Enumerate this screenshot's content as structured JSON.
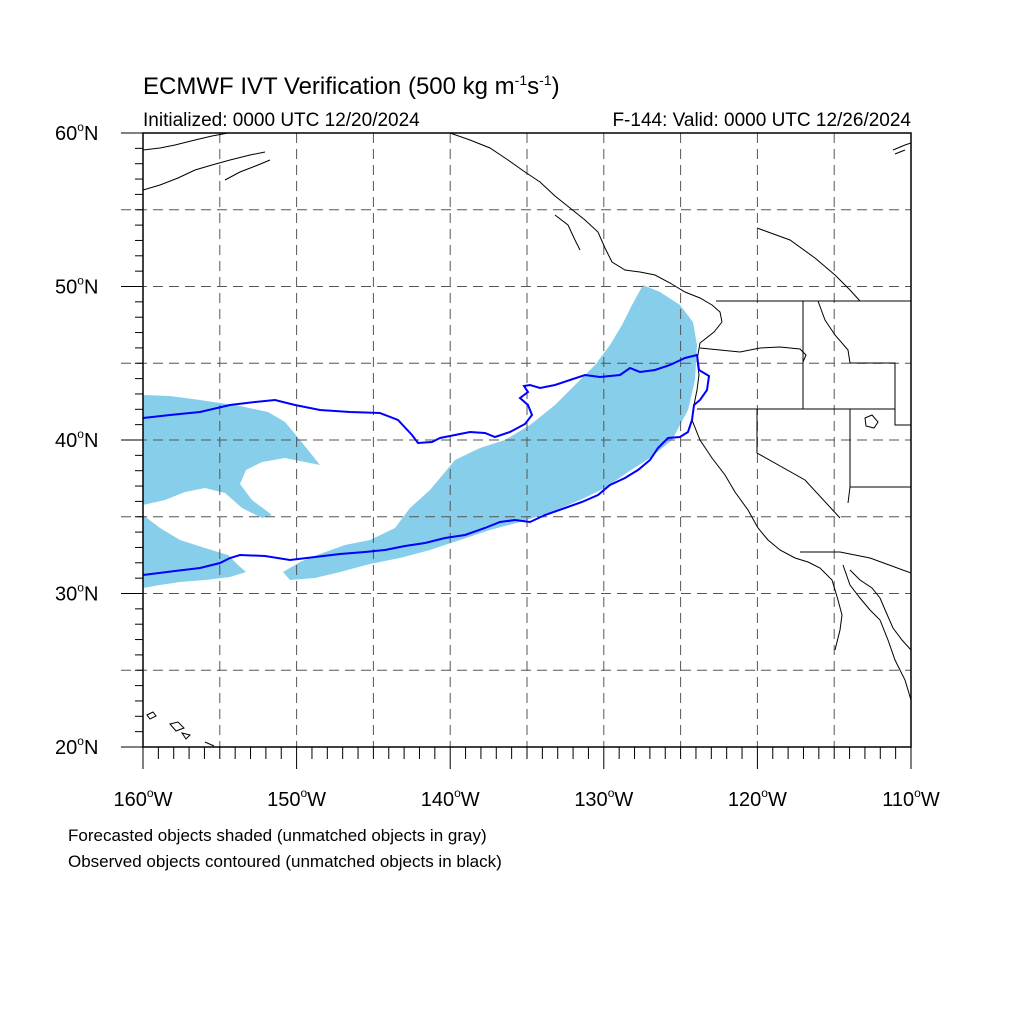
{
  "title": {
    "main": "ECMWF IVT Verification (500 kg m",
    "sup1": "-1",
    "mid": "s",
    "sup2": "-1",
    "end": ")"
  },
  "subtitle": {
    "initialized": "Initialized: 0000 UTC 12/20/2024",
    "valid": "F-144: Valid: 0000 UTC 12/26/2024"
  },
  "legend": {
    "line1": "Forecasted objects shaded (unmatched objects in gray)",
    "line2": "Observed objects contoured (unmatched objects in black)"
  },
  "map": {
    "lon_range": [
      -160,
      -110
    ],
    "lat_range": [
      20,
      60
    ],
    "lat_labels": [
      {
        "text": "60",
        "suffix": "N",
        "value": 60
      },
      {
        "text": "50",
        "suffix": "N",
        "value": 50
      },
      {
        "text": "40",
        "suffix": "N",
        "value": 40
      },
      {
        "text": "30",
        "suffix": "N",
        "value": 30
      },
      {
        "text": "20",
        "suffix": "N",
        "value": 20
      }
    ],
    "lon_labels": [
      {
        "text": "160",
        "suffix": "W",
        "value": -160
      },
      {
        "text": "150",
        "suffix": "W",
        "value": -150
      },
      {
        "text": "140",
        "suffix": "W",
        "value": -140
      },
      {
        "text": "130",
        "suffix": "W",
        "value": -130
      },
      {
        "text": "120",
        "suffix": "W",
        "value": -120
      },
      {
        "text": "110",
        "suffix": "W",
        "value": -110
      }
    ],
    "grid_spacing_deg": 5,
    "grid_style": "dashed",
    "colors": {
      "forecast_fill": "#87ceeb",
      "observed_contour": "#0000ff",
      "coastline": "#000000",
      "grid": "#555555"
    }
  }
}
